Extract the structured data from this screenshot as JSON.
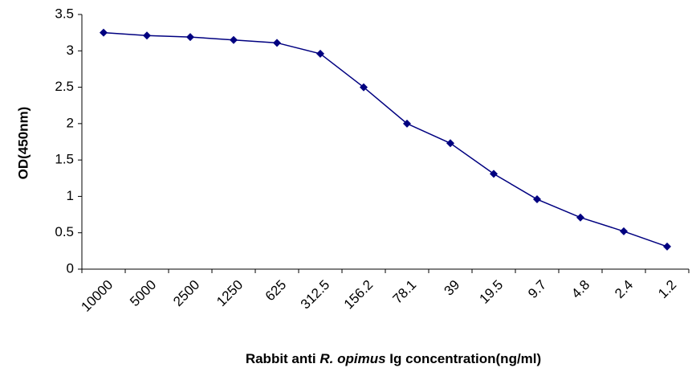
{
  "chart_data": {
    "type": "line",
    "y_label": "OD(450nm)",
    "x_label": [
      "Rabbit anti ",
      "R. opimus",
      " Ig concentration(ng/ml)"
    ],
    "categories": [
      "10000",
      "5000",
      "2500",
      "1250",
      "625",
      "312.5",
      "156.2",
      "78.1",
      "39",
      "19.5",
      "9.7",
      "4.8",
      "2.4",
      "1.2"
    ],
    "series": [
      {
        "name": "OD",
        "color": "#000080",
        "values": [
          3.25,
          3.21,
          3.19,
          3.15,
          3.11,
          2.96,
          2.5,
          2.0,
          1.73,
          1.31,
          0.96,
          0.71,
          0.52,
          0.31
        ]
      }
    ],
    "ylim": [
      0,
      3.5
    ],
    "yticks": [
      0,
      0.5,
      1,
      1.5,
      2,
      2.5,
      3,
      3.5
    ],
    "grid": false
  }
}
